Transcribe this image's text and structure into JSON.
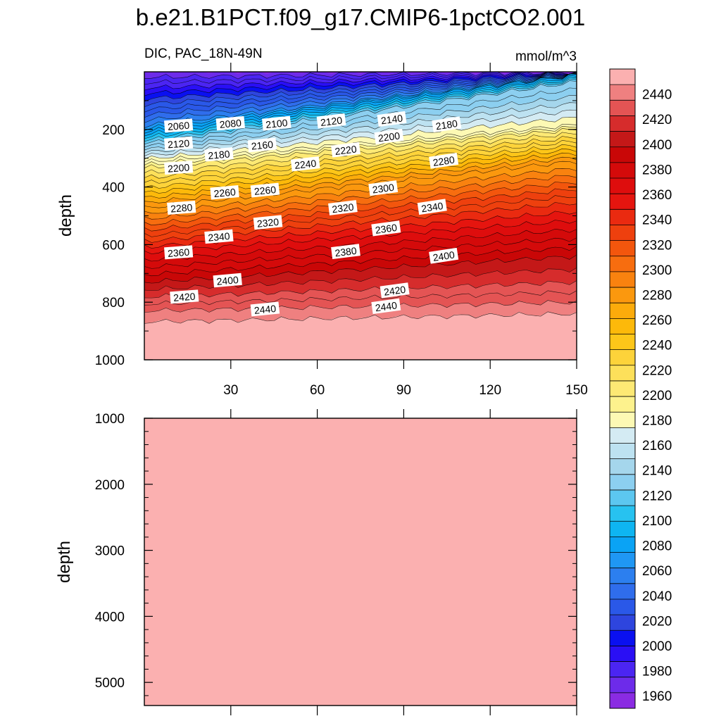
{
  "title": "b.e21.B1PCT.f09_g17.CMIP6-1pctCO2.001",
  "left_subtitle": "DIC, PAC_18N-49N",
  "right_subtitle": "mmol/m^3",
  "chart_data": {
    "type": "contour",
    "variable": "DIC",
    "region": "PAC_18N-49N",
    "units": "mmol/m^3",
    "panels": [
      {
        "id": "upper",
        "ylabel": "depth",
        "xlabel": "",
        "xlim": [
          0,
          150
        ],
        "ylim": [
          0,
          1000
        ],
        "y_inverted": true,
        "xticks": [
          30,
          60,
          90,
          120,
          150
        ],
        "yticks": [
          200,
          400,
          600,
          800,
          1000
        ],
        "contour_labels": [
          {
            "text": "2060",
            "x": 7,
            "y": 188
          },
          {
            "text": "2080",
            "x": 25,
            "y": 180
          },
          {
            "text": "2100",
            "x": 41,
            "y": 180
          },
          {
            "text": "2120",
            "x": 60,
            "y": 172
          },
          {
            "text": "2140",
            "x": 81,
            "y": 165
          },
          {
            "text": "2180",
            "x": 100,
            "y": 184
          },
          {
            "text": "2120",
            "x": 7,
            "y": 250
          },
          {
            "text": "2160",
            "x": 36,
            "y": 255
          },
          {
            "text": "2200",
            "x": 80,
            "y": 226
          },
          {
            "text": "2180",
            "x": 21,
            "y": 288
          },
          {
            "text": "2220",
            "x": 65,
            "y": 272
          },
          {
            "text": "2200",
            "x": 7,
            "y": 334
          },
          {
            "text": "2240",
            "x": 51,
            "y": 321
          },
          {
            "text": "2280",
            "x": 99,
            "y": 310
          },
          {
            "text": "2260",
            "x": 23,
            "y": 420
          },
          {
            "text": "2260",
            "x": 37,
            "y": 412
          },
          {
            "text": "2300",
            "x": 78,
            "y": 405
          },
          {
            "text": "2280",
            "x": 8,
            "y": 473
          },
          {
            "text": "2320",
            "x": 64,
            "y": 473
          },
          {
            "text": "2340",
            "x": 95,
            "y": 470
          },
          {
            "text": "2320",
            "x": 38,
            "y": 524
          },
          {
            "text": "2360",
            "x": 79,
            "y": 545
          },
          {
            "text": "2340",
            "x": 21,
            "y": 573
          },
          {
            "text": "2360",
            "x": 7,
            "y": 628
          },
          {
            "text": "2380",
            "x": 65,
            "y": 625
          },
          {
            "text": "2400",
            "x": 99,
            "y": 640
          },
          {
            "text": "2400",
            "x": 24,
            "y": 725
          },
          {
            "text": "2420",
            "x": 82,
            "y": 760
          },
          {
            "text": "2420",
            "x": 9,
            "y": 782
          },
          {
            "text": "2440",
            "x": 37,
            "y": 825
          },
          {
            "text": "2440",
            "x": 79,
            "y": 815
          }
        ]
      },
      {
        "id": "lower",
        "ylabel": "depth",
        "xlabel": "",
        "xlim": [
          0,
          150
        ],
        "ylim": [
          1000,
          5350
        ],
        "y_inverted": true,
        "xticks": [
          30,
          60,
          90,
          120,
          150
        ],
        "yticks": [
          1000,
          2000,
          3000,
          4000,
          5000
        ],
        "uniform_value_band": "2440+"
      }
    ],
    "colorbar": {
      "levels": [
        1960,
        1980,
        2000,
        2020,
        2040,
        2060,
        2080,
        2100,
        2120,
        2140,
        2160,
        2180,
        2200,
        2220,
        2240,
        2260,
        2280,
        2300,
        2320,
        2340,
        2360,
        2380,
        2400,
        2420,
        2440
      ],
      "colors": [
        "#8a2be2",
        "#6d2bea",
        "#4b25f2",
        "#2a0ff5",
        "#0a10f0",
        "#2e45de",
        "#2a58e8",
        "#2f6dec",
        "#2c7fef",
        "#1f97f4",
        "#0aa3f5",
        "#0eb5f2",
        "#27c2f0",
        "#5cc7f0",
        "#8ccff0",
        "#a5d6ec",
        "#bde2f1",
        "#d4ebf3",
        "#fdf9b4",
        "#fdf28d",
        "#fde974",
        "#fde05a",
        "#fdd33a",
        "#fdc619",
        "#fdb90a",
        "#fcab0b",
        "#fb980e",
        "#f9820f",
        "#f76d0f",
        "#f3560d",
        "#ee400e",
        "#ea2a10",
        "#e5150f",
        "#de0d0d",
        "#d40a0a",
        "#c90707",
        "#c41818",
        "#d62c2c",
        "#e45454",
        "#ef8080",
        "#fbb0b0"
      ]
    }
  }
}
